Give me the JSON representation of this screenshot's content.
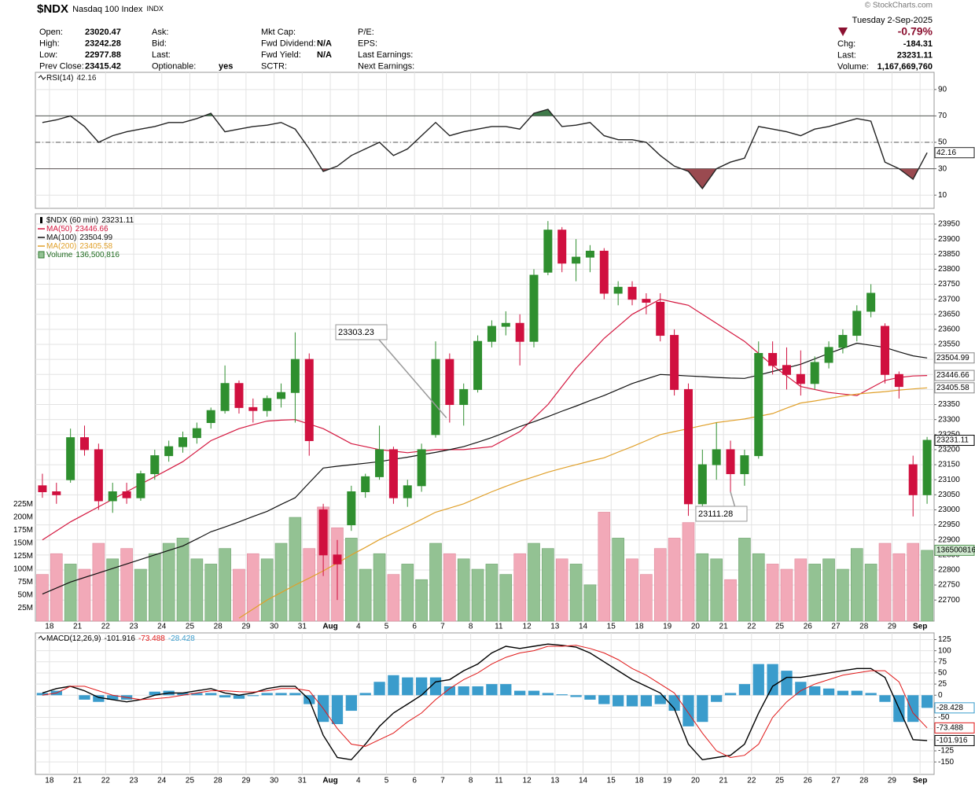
{
  "header": {
    "symbol": "$NDX",
    "name": "Nasdaq 100 Index",
    "exchange": "INDX",
    "watermark": "© StockCharts.com",
    "date": "Tuesday  2-Sep-2025",
    "change_pct": "-0.79%",
    "fields": [
      [
        {
          "label": "Open:",
          "value": "23020.47"
        },
        {
          "label": "High:",
          "value": "23242.28"
        },
        {
          "label": "Low:",
          "value": "22977.88"
        },
        {
          "label": "Prev Close:",
          "value": "23415.42"
        }
      ],
      [
        {
          "label": "Ask:"
        },
        {
          "label": "Bid:"
        },
        {
          "label": "Last:"
        },
        {
          "label": "Optionable:",
          "value": "yes"
        }
      ],
      [
        {
          "label": "Mkt Cap:"
        },
        {
          "label": "Fwd Dividend:",
          "value": "N/A"
        },
        {
          "label": "Fwd Yield:",
          "value": "N/A"
        },
        {
          "label": "SCTR:"
        }
      ],
      [
        {
          "label": "P/E:"
        },
        {
          "label": "EPS:"
        },
        {
          "label": "Last Earnings:"
        },
        {
          "label": "Next Earnings:"
        }
      ]
    ],
    "right_fields": [
      {
        "label": "Chg:",
        "value": "-184.31"
      },
      {
        "label": "Last:",
        "value": "23231.11"
      },
      {
        "label": "Volume:",
        "value": "1,167,669,760"
      }
    ]
  },
  "chart_data": [
    {
      "type": "line",
      "series": [
        {
          "name": "RSI(14)",
          "color": "#222222",
          "values": [
            65,
            67,
            70,
            62,
            50,
            55,
            58,
            60,
            62,
            65,
            65,
            68,
            72,
            58,
            60,
            62,
            63,
            65,
            60,
            45,
            28,
            32,
            40,
            45,
            50,
            40,
            45,
            55,
            65,
            55,
            58,
            60,
            62,
            62,
            60,
            72,
            75,
            62,
            63,
            65,
            55,
            52,
            52,
            50,
            40,
            32,
            28,
            15,
            30,
            35,
            38,
            62,
            60,
            58,
            55,
            60,
            62,
            65,
            68,
            66,
            35,
            30,
            22,
            42.16
          ]
        }
      ],
      "levels": [
        {
          "value": 70,
          "style": "solid",
          "fill": "above",
          "color": "#3f7a4a"
        },
        {
          "value": 50,
          "style": "dashdot"
        },
        {
          "value": 30,
          "style": "solid",
          "fill": "below",
          "color": "#9a4a50"
        }
      ],
      "ylim": [
        0,
        103
      ],
      "yticks": [
        10,
        30,
        50,
        70,
        90
      ],
      "grid": true
    },
    {
      "type": "candlestick",
      "title": "$NDX (60 min)",
      "categories": [
        "18",
        null,
        "21",
        null,
        "22",
        null,
        "23",
        null,
        "24",
        null,
        "25",
        null,
        "28",
        null,
        "29",
        null,
        "30",
        null,
        "31",
        null,
        "Aug",
        null,
        "4",
        null,
        "5",
        null,
        "6",
        null,
        "7",
        null,
        "8",
        null,
        "11",
        null,
        "12",
        null,
        "13",
        null,
        "14",
        null,
        "15",
        null,
        "18",
        null,
        "19",
        null,
        "20",
        null,
        "21",
        null,
        "22",
        null,
        "25",
        null,
        "26",
        null,
        "27",
        null,
        "28",
        null,
        "29",
        null,
        "Sep",
        null
      ],
      "open": [
        23080,
        23060,
        23100,
        23240,
        23200,
        23030,
        23060,
        23040,
        23120,
        23180,
        23210,
        23240,
        23290,
        23330,
        23420,
        23340,
        23330,
        23370,
        23390,
        23500,
        23000,
        22850,
        22950,
        23060,
        23110,
        23200,
        23040,
        23080,
        23250,
        23500,
        23350,
        23400,
        23560,
        23610,
        23620,
        23560,
        23790,
        23930,
        23820,
        23840,
        23860,
        23720,
        23740,
        23700,
        23690,
        23580,
        23400,
        23020,
        23150,
        23200,
        23120,
        23180,
        23520,
        23480,
        23450,
        23420,
        23490,
        23540,
        23580,
        23660,
        23610,
        23450,
        23150,
        23050
      ],
      "high": [
        23120,
        23090,
        23270,
        23280,
        23220,
        23090,
        23090,
        23130,
        23200,
        23230,
        23260,
        23290,
        23340,
        23480,
        23430,
        23370,
        23380,
        23420,
        23590,
        23520,
        23020,
        22900,
        23080,
        23120,
        23280,
        23210,
        23100,
        23220,
        23560,
        23520,
        23420,
        23580,
        23630,
        23660,
        23650,
        23800,
        23960,
        23940,
        23900,
        23880,
        23870,
        23760,
        23760,
        23720,
        23720,
        23600,
        23420,
        23200,
        23290,
        23230,
        23200,
        23560,
        23560,
        23540,
        23530,
        23510,
        23560,
        23600,
        23680,
        23750,
        23620,
        23460,
        23180,
        23242.28
      ],
      "low": [
        23040,
        23020,
        23090,
        23180,
        23000,
        22990,
        23020,
        23030,
        23100,
        23160,
        23190,
        23220,
        23270,
        23320,
        23320,
        23290,
        23310,
        23340,
        23290,
        23180,
        22780,
        22700,
        22930,
        23040,
        23100,
        23020,
        23010,
        23060,
        23240,
        23290,
        23280,
        23390,
        23540,
        23580,
        23480,
        23540,
        23780,
        23790,
        23760,
        23790,
        23700,
        23680,
        23680,
        23650,
        23560,
        23380,
        22980,
        23000,
        23100,
        23060,
        23080,
        23170,
        23450,
        23400,
        23380,
        23400,
        23470,
        23520,
        23560,
        23640,
        23420,
        23370,
        22977.88,
        23020
      ],
      "close": [
        23060,
        23050,
        23240,
        23200,
        23030,
        23060,
        23040,
        23120,
        23180,
        23210,
        23240,
        23270,
        23330,
        23420,
        23340,
        23330,
        23370,
        23390,
        23500,
        23230,
        22850,
        22820,
        23060,
        23110,
        23200,
        23040,
        23080,
        23200,
        23500,
        23350,
        23400,
        23560,
        23610,
        23620,
        23560,
        23780,
        23930,
        23820,
        23840,
        23860,
        23720,
        23740,
        23700,
        23690,
        23580,
        23400,
        23020,
        23150,
        23200,
        23120,
        23180,
        23520,
        23480,
        23450,
        23420,
        23490,
        23540,
        23580,
        23660,
        23720,
        23450,
        23410,
        23050,
        23231.11
      ],
      "up_color": "#2f8f2f",
      "down_color": "#d0103f",
      "series": [
        {
          "name": "MA(50)",
          "color": "#d4173f",
          "values": [
            22900,
            22930,
            22960,
            22985,
            23010,
            23035,
            23060,
            23085,
            23110,
            23135,
            23160,
            23195,
            23230,
            23250,
            23270,
            23283,
            23295,
            23298,
            23300,
            23285,
            23270,
            23245,
            23220,
            23210,
            23200,
            23195,
            23190,
            23195,
            23200,
            23200,
            23200,
            23205,
            23210,
            23235,
            23260,
            23305,
            23350,
            23410,
            23470,
            23520,
            23570,
            23610,
            23650,
            23675,
            23700,
            23690,
            23680,
            23650,
            23620,
            23590,
            23560,
            23520,
            23480,
            23445,
            23410,
            23400,
            23390,
            23385,
            23380,
            23405,
            23430,
            23440,
            23445,
            23446.66
          ]
        },
        {
          "name": "MA(100)",
          "color": "#111111",
          "values": [
            22720,
            22740,
            22760,
            22775,
            22790,
            22805,
            22820,
            22835,
            22850,
            22865,
            22880,
            22903,
            22927,
            22943,
            22960,
            22978,
            22995,
            23018,
            23040,
            23090,
            23139,
            23145,
            23150,
            23155,
            23160,
            23168,
            23175,
            23183,
            23191,
            23200,
            23210,
            23225,
            23240,
            23258,
            23277,
            23293,
            23310,
            23328,
            23345,
            23363,
            23380,
            23400,
            23420,
            23435,
            23450,
            23448,
            23445,
            23443,
            23440,
            23438,
            23437,
            23448,
            23460,
            23472,
            23484,
            23502,
            23520,
            23537,
            23554,
            23547,
            23540,
            23525,
            23512,
            23504.99
          ]
        },
        {
          "name": "MA(200)",
          "color": "#e0a02a",
          "values": [
            null,
            null,
            null,
            null,
            null,
            null,
            null,
            null,
            null,
            null,
            null,
            null,
            null,
            null,
            22640,
            22670,
            22700,
            22725,
            22750,
            22773,
            22797,
            22823,
            22850,
            22875,
            22901,
            22923,
            22945,
            22968,
            22992,
            23006,
            23020,
            23040,
            23060,
            23078,
            23095,
            23110,
            23125,
            23138,
            23150,
            23162,
            23173,
            23192,
            23210,
            23230,
            23250,
            23260,
            23270,
            23280,
            23290,
            23296,
            23302,
            23311,
            23320,
            23338,
            23355,
            23362,
            23370,
            23378,
            23385,
            23389,
            23393,
            23398,
            23402,
            23405.58
          ]
        }
      ],
      "volume": {
        "name": "Volume",
        "legend_value": "136,500,816",
        "up_color": "#93c293",
        "down_color": "#f2a9b8",
        "values": [
          90000000,
          130000000,
          110000000,
          100000000,
          150000000,
          120000000,
          140000000,
          100000000,
          130000000,
          150000000,
          160000000,
          120000000,
          110000000,
          140000000,
          100000000,
          130000000,
          120000000,
          150000000,
          200000000,
          140000000,
          220000000,
          180000000,
          160000000,
          100000000,
          130000000,
          90000000,
          110000000,
          80000000,
          150000000,
          130000000,
          120000000,
          100000000,
          110000000,
          90000000,
          130000000,
          150000000,
          140000000,
          120000000,
          110000000,
          70000000,
          210000000,
          160000000,
          120000000,
          90000000,
          140000000,
          160000000,
          190000000,
          130000000,
          120000000,
          80000000,
          160000000,
          130000000,
          110000000,
          100000000,
          120000000,
          110000000,
          120000000,
          100000000,
          140000000,
          110000000,
          150000000,
          130000000,
          150000000,
          136500816
        ],
        "ylim": [
          0,
          785000000
        ],
        "yticks": [
          {
            "value": 25000000,
            "label": "25M"
          },
          {
            "value": 50000000,
            "label": "50M"
          },
          {
            "value": 75000000,
            "label": "75M"
          },
          {
            "value": 100000000,
            "label": "100M"
          },
          {
            "value": 125000000,
            "label": "125M"
          },
          {
            "value": 150000000,
            "label": "150M"
          },
          {
            "value": 175000000,
            "label": "175M"
          },
          {
            "value": 200000000,
            "label": "200M"
          },
          {
            "value": 225000000,
            "label": "225M"
          }
        ]
      },
      "annotations": [
        "23303.23",
        "23111.28"
      ],
      "ylim": [
        22630,
        23984
      ],
      "yticks": [
        22700,
        22750,
        22800,
        22850,
        22900,
        22950,
        23000,
        23050,
        23100,
        23150,
        23200,
        23250,
        23300,
        23350,
        23400,
        23450,
        23500,
        23550,
        23600,
        23650,
        23700,
        23750,
        23800,
        23850,
        23900,
        23950
      ],
      "grid": true
    },
    {
      "type": "line",
      "categories": [
        "18",
        null,
        "21",
        null,
        "22",
        null,
        "23",
        null,
        "24",
        null,
        "25",
        null,
        "28",
        null,
        "29",
        null,
        "30",
        null,
        "31",
        null,
        "Aug",
        null,
        "4",
        null,
        "5",
        null,
        "6",
        null,
        "7",
        null,
        "8",
        null,
        "11",
        null,
        "12",
        null,
        "13",
        null,
        "14",
        null,
        "15",
        null,
        "18",
        null,
        "19",
        null,
        "20",
        null,
        "21",
        null,
        "22",
        null,
        "25",
        null,
        "26",
        null,
        "27",
        null,
        "28",
        null,
        "29",
        null,
        "Sep",
        null
      ],
      "series": [
        {
          "name": "MACD(12,26,9)",
          "color": "#000000",
          "values": [
            5,
            15,
            20,
            10,
            -5,
            -10,
            -15,
            -10,
            0,
            5,
            5,
            10,
            15,
            5,
            0,
            5,
            15,
            20,
            20,
            -10,
            -90,
            -140,
            -145,
            -110,
            -70,
            -40,
            -20,
            0,
            30,
            35,
            55,
            70,
            95,
            110,
            105,
            110,
            115,
            112,
            108,
            95,
            75,
            55,
            35,
            20,
            5,
            -30,
            -110,
            -145,
            -140,
            -135,
            -110,
            -40,
            20,
            40,
            40,
            45,
            50,
            55,
            60,
            60,
            40,
            -30,
            -100,
            -101.916
          ]
        },
        {
          "color": "#e01818",
          "values": [
            0,
            5,
            20,
            20,
            10,
            0,
            -5,
            -10,
            -8,
            -5,
            0,
            5,
            10,
            10,
            8,
            7,
            10,
            15,
            15,
            10,
            -30,
            -75,
            -110,
            -115,
            -100,
            -85,
            -60,
            -40,
            -10,
            15,
            35,
            50,
            70,
            85,
            95,
            100,
            110,
            110,
            112,
            105,
            95,
            80,
            60,
            45,
            25,
            5,
            -40,
            -85,
            -125,
            -140,
            -135,
            -110,
            -50,
            -15,
            10,
            25,
            35,
            45,
            50,
            55,
            55,
            30,
            -40,
            -73.488
          ]
        },
        {
          "type": "bar",
          "color": "#3a9ccc",
          "values": [
            5,
            10,
            0,
            -10,
            -15,
            -10,
            -10,
            0,
            8,
            10,
            5,
            5,
            5,
            -5,
            -8,
            -2,
            5,
            5,
            5,
            -20,
            -60,
            -65,
            -35,
            5,
            30,
            45,
            40,
            40,
            40,
            20,
            20,
            20,
            25,
            25,
            10,
            10,
            5,
            2,
            -4,
            -10,
            -20,
            -25,
            -25,
            -25,
            -20,
            -35,
            -70,
            -60,
            -15,
            5,
            25,
            70,
            70,
            55,
            30,
            20,
            15,
            10,
            10,
            5,
            -15,
            -60,
            -60,
            -28.428
          ]
        }
      ],
      "ylim": [
        -178,
        140
      ],
      "yticks": [
        -150,
        -125,
        -100,
        -75,
        -50,
        -25,
        0,
        25,
        50,
        75,
        100,
        125
      ],
      "grid": true
    }
  ]
}
